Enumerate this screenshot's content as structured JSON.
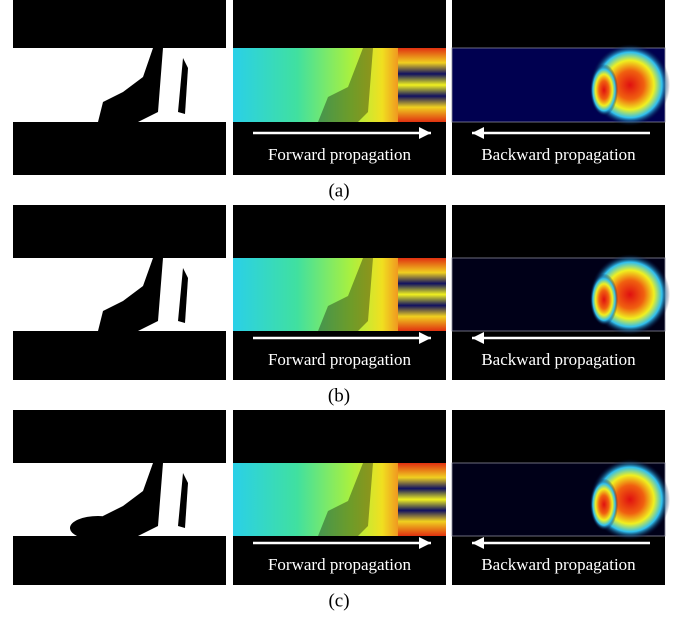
{
  "rows": [
    {
      "label": "(a)",
      "forward_caption": "Forward propagation",
      "backward_caption": "Backward propagation"
    },
    {
      "label": "(b)",
      "forward_caption": "Forward propagation",
      "backward_caption": "Backward propagation"
    },
    {
      "label": "(c)",
      "forward_caption": "Forward propagation",
      "backward_caption": "Backward propagation"
    }
  ]
}
